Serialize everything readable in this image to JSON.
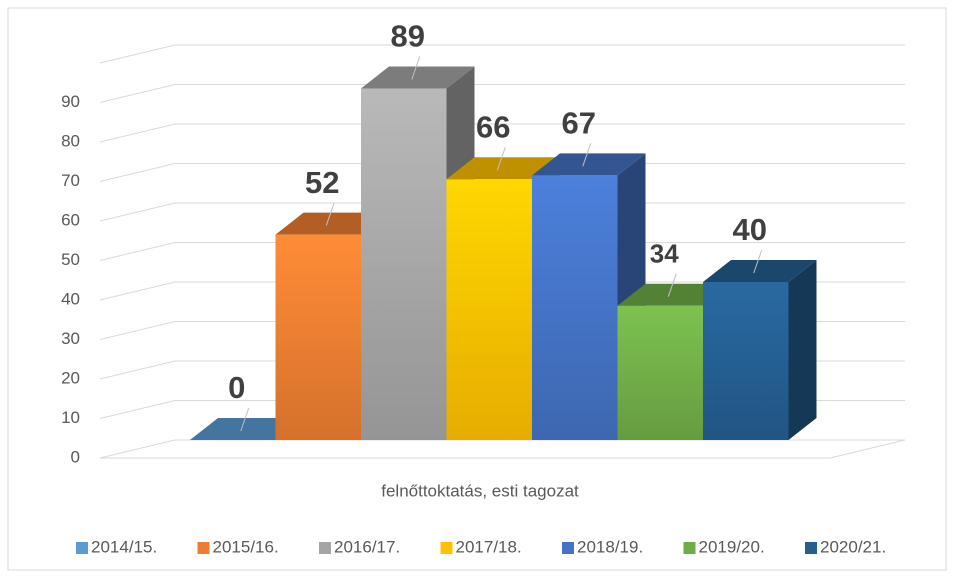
{
  "chart_data": {
    "type": "bar3d",
    "categories": [
      "felnőttoktatás, esti tagozat"
    ],
    "series": [
      {
        "name": "2014/15.",
        "color": "#5b9bd5",
        "values": [
          0
        ]
      },
      {
        "name": "2015/16.",
        "color": "#ed7d31",
        "values": [
          52
        ]
      },
      {
        "name": "2016/17.",
        "color": "#a5a5a5",
        "values": [
          89
        ]
      },
      {
        "name": "2017/18.",
        "color": "#ffc000",
        "values": [
          66
        ]
      },
      {
        "name": "2018/19.",
        "color": "#4472c4",
        "values": [
          67
        ]
      },
      {
        "name": "2019/20.",
        "color": "#70ad47",
        "values": [
          34
        ]
      },
      {
        "name": "2020/21.",
        "color": "#255e91",
        "values": [
          40
        ]
      }
    ],
    "ylim": [
      0,
      100
    ],
    "yticks": [
      0,
      10,
      20,
      30,
      40,
      50,
      60,
      70,
      80,
      90
    ],
    "grid": true,
    "legend": "bottom"
  }
}
